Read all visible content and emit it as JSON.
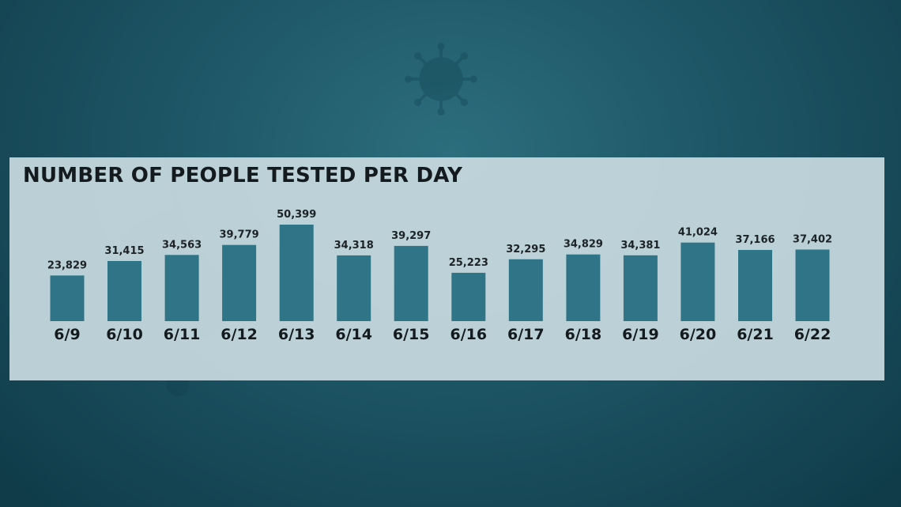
{
  "chart_data": {
    "type": "bar",
    "title": "NUMBER OF PEOPLE TESTED PER DAY",
    "xlabel": "",
    "ylabel": "",
    "categories": [
      "6/9",
      "6/10",
      "6/11",
      "6/12",
      "6/13",
      "6/14",
      "6/15",
      "6/16",
      "6/17",
      "6/18",
      "6/19",
      "6/20",
      "6/21",
      "6/22"
    ],
    "values": [
      23829,
      31415,
      34563,
      39779,
      50399,
      34318,
      39297,
      25223,
      32295,
      34829,
      34381,
      41024,
      37166,
      37402
    ],
    "value_labels": [
      "23,829",
      "31,415",
      "34,563",
      "39,779",
      "50,399",
      "34,318",
      "39,297",
      "25,223",
      "32,295",
      "34,829",
      "34,381",
      "41,024",
      "37,166",
      "37,402"
    ],
    "ylim": [
      0,
      50399
    ],
    "grid": false,
    "colors": {
      "bar": "#2f7487",
      "panel": "#c8dae0",
      "text": "#141a1d"
    }
  }
}
